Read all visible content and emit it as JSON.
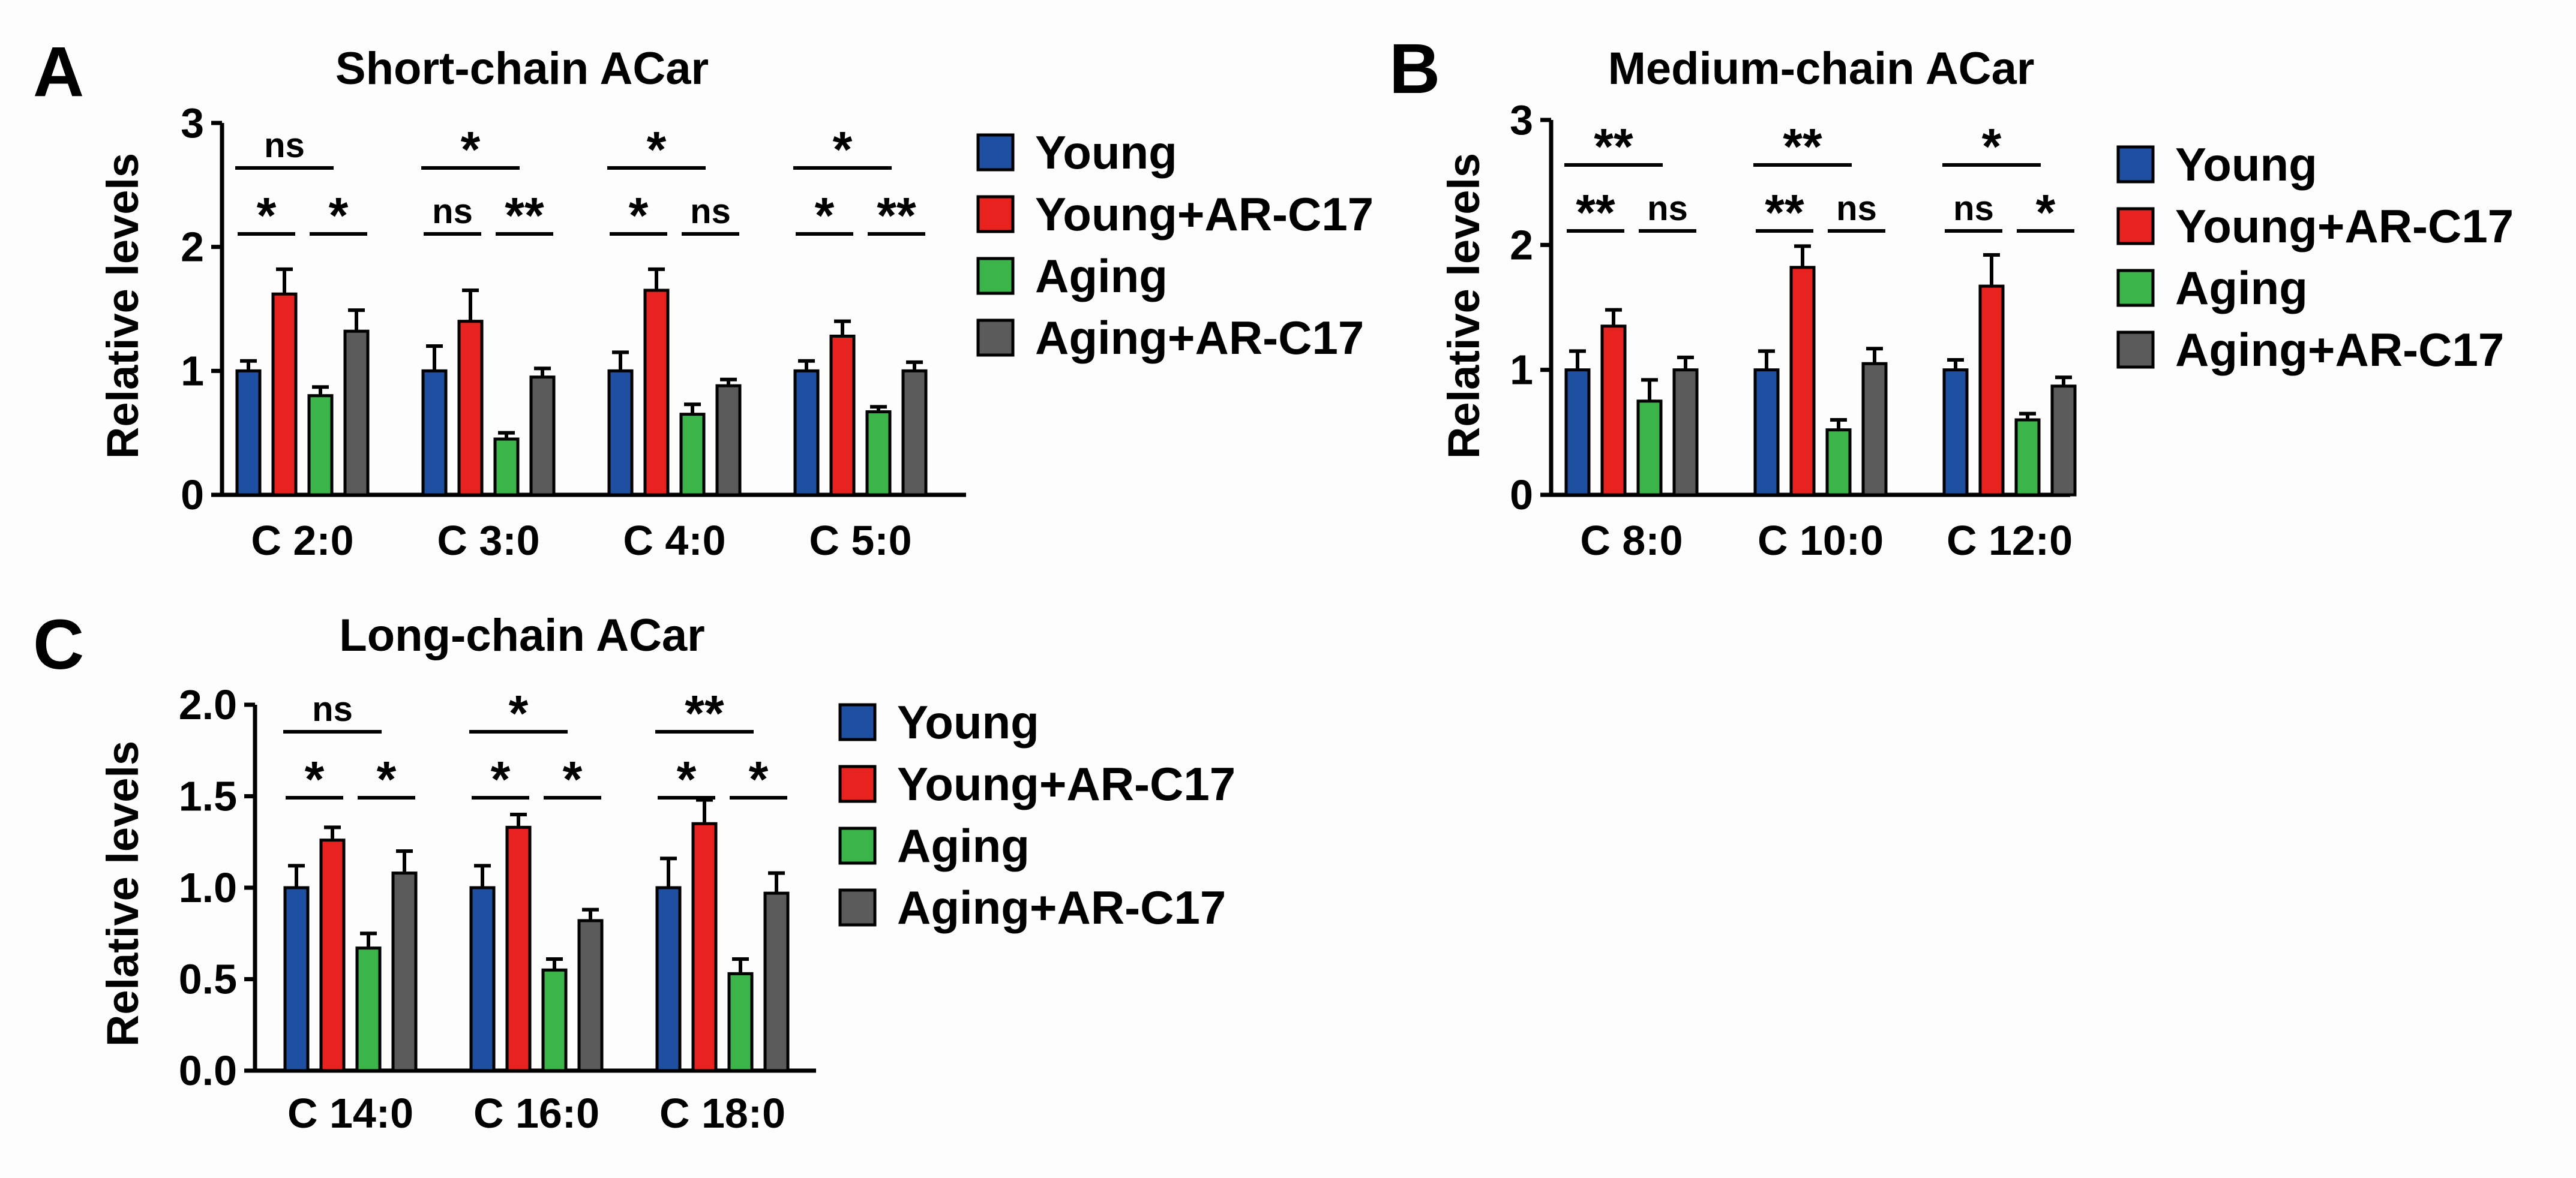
{
  "legend": [
    "Young",
    "Young+AR-C17",
    "Aging",
    "Aging+AR-C17"
  ],
  "colors": {
    "Young": "#1f4fa0",
    "Young+AR-C17": "#e8231f",
    "Aging": "#3bb54a",
    "Aging+AR-C17": "#5b5b5b"
  },
  "chart_data": [
    {
      "panel": "A",
      "type": "bar",
      "title": "Short-chain ACar",
      "ylabel": "Relative levels",
      "ylim": [
        0,
        3
      ],
      "yticks": [
        "0",
        "1",
        "2",
        "3"
      ],
      "categories": [
        "C 2:0",
        "C 3:0",
        "C 4:0",
        "C 5:0"
      ],
      "series": [
        {
          "name": "Young",
          "values": [
            1.0,
            1.0,
            1.0,
            1.0
          ],
          "errors": [
            0.08,
            0.2,
            0.15,
            0.08
          ]
        },
        {
          "name": "Young+AR-C17",
          "values": [
            1.62,
            1.4,
            1.65,
            1.28
          ],
          "errors": [
            0.2,
            0.25,
            0.17,
            0.12
          ]
        },
        {
          "name": "Aging",
          "values": [
            0.8,
            0.45,
            0.65,
            0.67
          ],
          "errors": [
            0.07,
            0.05,
            0.08,
            0.04
          ]
        },
        {
          "name": "Aging+AR-C17",
          "values": [
            1.32,
            0.95,
            0.88,
            1.0
          ],
          "errors": [
            0.17,
            0.07,
            0.05,
            0.07
          ]
        }
      ],
      "significance": [
        {
          "top": "ns",
          "left": "*",
          "right": "*"
        },
        {
          "top": "*",
          "left": "ns",
          "right": "**"
        },
        {
          "top": "*",
          "left": "*",
          "right": "ns"
        },
        {
          "top": "*",
          "left": "*",
          "right": "**"
        }
      ]
    },
    {
      "panel": "B",
      "type": "bar",
      "title": "Medium-chain ACar",
      "ylabel": "Relative levels",
      "ylim": [
        0,
        3
      ],
      "yticks": [
        "0",
        "1",
        "2",
        "3"
      ],
      "categories": [
        "C 8:0",
        "C 10:0",
        "C 12:0"
      ],
      "series": [
        {
          "name": "Young",
          "values": [
            1.0,
            1.0,
            1.0
          ],
          "errors": [
            0.15,
            0.15,
            0.08
          ]
        },
        {
          "name": "Young+AR-C17",
          "values": [
            1.35,
            1.82,
            1.67
          ],
          "errors": [
            0.13,
            0.17,
            0.25
          ]
        },
        {
          "name": "Aging",
          "values": [
            0.75,
            0.52,
            0.6
          ],
          "errors": [
            0.17,
            0.08,
            0.05
          ]
        },
        {
          "name": "Aging+AR-C17",
          "values": [
            1.0,
            1.05,
            0.87
          ],
          "errors": [
            0.1,
            0.12,
            0.07
          ]
        }
      ],
      "significance": [
        {
          "top": "**",
          "left": "**",
          "right": "ns"
        },
        {
          "top": "**",
          "left": "**",
          "right": "ns"
        },
        {
          "top": "*",
          "left": "ns",
          "right": "*"
        }
      ]
    },
    {
      "panel": "C",
      "type": "bar",
      "title": "Long-chain ACar",
      "ylabel": "Relative levels",
      "ylim": [
        0,
        2
      ],
      "yticks": [
        "0.0",
        "0.5",
        "1.0",
        "1.5",
        "2.0"
      ],
      "categories": [
        "C 14:0",
        "C 16:0",
        "C 18:0"
      ],
      "series": [
        {
          "name": "Young",
          "values": [
            1.0,
            1.0,
            1.0
          ],
          "errors": [
            0.12,
            0.12,
            0.16
          ]
        },
        {
          "name": "Young+AR-C17",
          "values": [
            1.26,
            1.33,
            1.35
          ],
          "errors": [
            0.07,
            0.07,
            0.13
          ]
        },
        {
          "name": "Aging",
          "values": [
            0.67,
            0.55,
            0.53
          ],
          "errors": [
            0.08,
            0.06,
            0.08
          ]
        },
        {
          "name": "Aging+AR-C17",
          "values": [
            1.08,
            0.82,
            0.97
          ],
          "errors": [
            0.12,
            0.06,
            0.11
          ]
        }
      ],
      "significance": [
        {
          "top": "ns",
          "left": "*",
          "right": "*"
        },
        {
          "top": "*",
          "left": "*",
          "right": "*"
        },
        {
          "top": "**",
          "left": "*",
          "right": "*"
        }
      ]
    }
  ]
}
